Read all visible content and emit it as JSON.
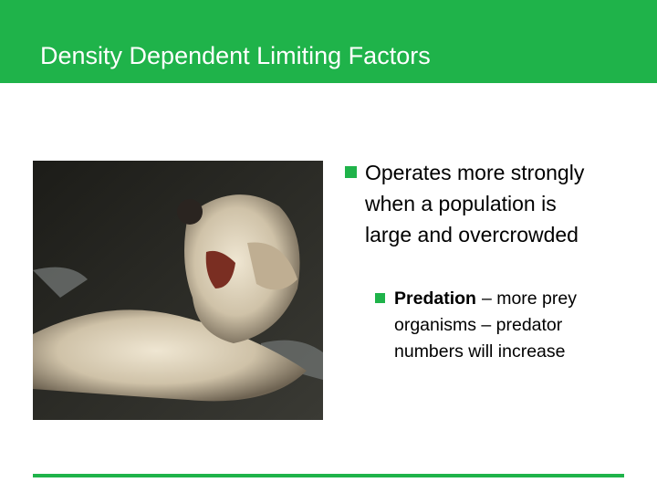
{
  "header": {
    "title": "Density Dependent Limiting Factors"
  },
  "bullets": [
    {
      "text": "Operates more strongly when a population is large and overcrowded",
      "sub_bullets": [
        {
          "term": "Predation",
          "text": "– more prey organisms – predator numbers will increase"
        }
      ]
    }
  ]
}
